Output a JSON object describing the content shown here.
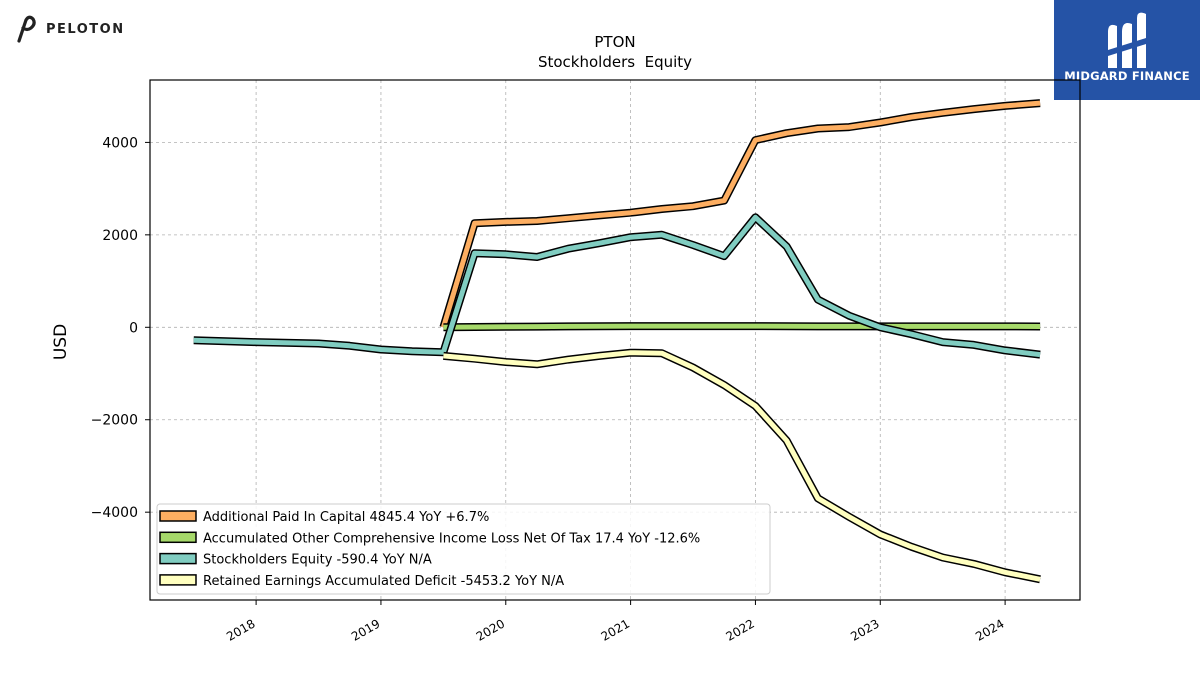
{
  "header": {
    "left_logo_text": "PELOTON",
    "right_logo_text": "MIDGARD FINANCE"
  },
  "chart_data": {
    "type": "line",
    "title": "PTON",
    "subtitle": "Stockholders  Equity",
    "ylabel": "USD",
    "xlabel": "",
    "xlim": [
      2017.15,
      2024.6
    ],
    "ylim": [
      -5900,
      5350
    ],
    "yticks": [
      -4000,
      -2000,
      0,
      2000,
      4000
    ],
    "ytick_labels": [
      "−4000",
      "−2000",
      "0",
      "2000",
      "4000"
    ],
    "xticks": [
      2018,
      2019,
      2020,
      2021,
      2022,
      2023,
      2024
    ],
    "xtick_labels": [
      "2018",
      "2019",
      "2020",
      "2021",
      "2022",
      "2023",
      "2024"
    ],
    "grid": true,
    "legend_position": "lower-left",
    "series": [
      {
        "name": "Additional Paid In Capital  4845.4 YoY +6.7%",
        "color": "#fdae61",
        "points": [
          [
            2019.5,
            0
          ],
          [
            2019.75,
            2250
          ],
          [
            2020.0,
            2280
          ],
          [
            2020.25,
            2300
          ],
          [
            2020.5,
            2360
          ],
          [
            2020.75,
            2420
          ],
          [
            2021.0,
            2480
          ],
          [
            2021.25,
            2560
          ],
          [
            2021.5,
            2620
          ],
          [
            2021.75,
            2740
          ],
          [
            2022.0,
            4050
          ],
          [
            2022.25,
            4200
          ],
          [
            2022.5,
            4300
          ],
          [
            2022.75,
            4330
          ],
          [
            2023.0,
            4430
          ],
          [
            2023.25,
            4550
          ],
          [
            2023.5,
            4640
          ],
          [
            2023.75,
            4720
          ],
          [
            2024.0,
            4790
          ],
          [
            2024.28,
            4850
          ]
        ]
      },
      {
        "name": "Accumulated Other Comprehensive Income Loss Net Of Tax  17.4 YoY -12.6%",
        "color": "#a6d96a",
        "points": [
          [
            2019.5,
            0
          ],
          [
            2020.0,
            10
          ],
          [
            2020.25,
            15
          ],
          [
            2020.5,
            20
          ],
          [
            2021.0,
            25
          ],
          [
            2021.5,
            25
          ],
          [
            2022.0,
            25
          ],
          [
            2022.5,
            20
          ],
          [
            2023.0,
            20
          ],
          [
            2023.5,
            20
          ],
          [
            2024.0,
            20
          ],
          [
            2024.28,
            17
          ]
        ]
      },
      {
        "name": "Stockholders Equity  -590.4 YoY N/A",
        "color": "#80cdc1",
        "points": [
          [
            2017.5,
            -280
          ],
          [
            2018.0,
            -320
          ],
          [
            2018.5,
            -350
          ],
          [
            2018.75,
            -400
          ],
          [
            2019.0,
            -480
          ],
          [
            2019.25,
            -520
          ],
          [
            2019.5,
            -540
          ],
          [
            2019.75,
            1600
          ],
          [
            2020.0,
            1580
          ],
          [
            2020.25,
            1520
          ],
          [
            2020.5,
            1700
          ],
          [
            2020.75,
            1820
          ],
          [
            2021.0,
            1950
          ],
          [
            2021.25,
            2000
          ],
          [
            2021.5,
            1780
          ],
          [
            2021.75,
            1540
          ],
          [
            2022.0,
            2380
          ],
          [
            2022.25,
            1750
          ],
          [
            2022.5,
            600
          ],
          [
            2022.75,
            250
          ],
          [
            2023.0,
            0
          ],
          [
            2023.25,
            -150
          ],
          [
            2023.5,
            -320
          ],
          [
            2023.75,
            -380
          ],
          [
            2024.0,
            -500
          ],
          [
            2024.28,
            -590
          ]
        ]
      },
      {
        "name": "Retained Earnings Accumulated Deficit  -5453.2 YoY N/A",
        "color": "#ffffbf",
        "points": [
          [
            2019.5,
            -620
          ],
          [
            2019.75,
            -680
          ],
          [
            2020.0,
            -750
          ],
          [
            2020.25,
            -800
          ],
          [
            2020.5,
            -700
          ],
          [
            2020.75,
            -620
          ],
          [
            2021.0,
            -550
          ],
          [
            2021.25,
            -560
          ],
          [
            2021.5,
            -870
          ],
          [
            2021.75,
            -1250
          ],
          [
            2022.0,
            -1700
          ],
          [
            2022.25,
            -2450
          ],
          [
            2022.5,
            -3700
          ],
          [
            2022.75,
            -4100
          ],
          [
            2023.0,
            -4480
          ],
          [
            2023.25,
            -4750
          ],
          [
            2023.5,
            -4980
          ],
          [
            2023.75,
            -5120
          ],
          [
            2024.0,
            -5300
          ],
          [
            2024.28,
            -5453
          ]
        ]
      }
    ]
  }
}
